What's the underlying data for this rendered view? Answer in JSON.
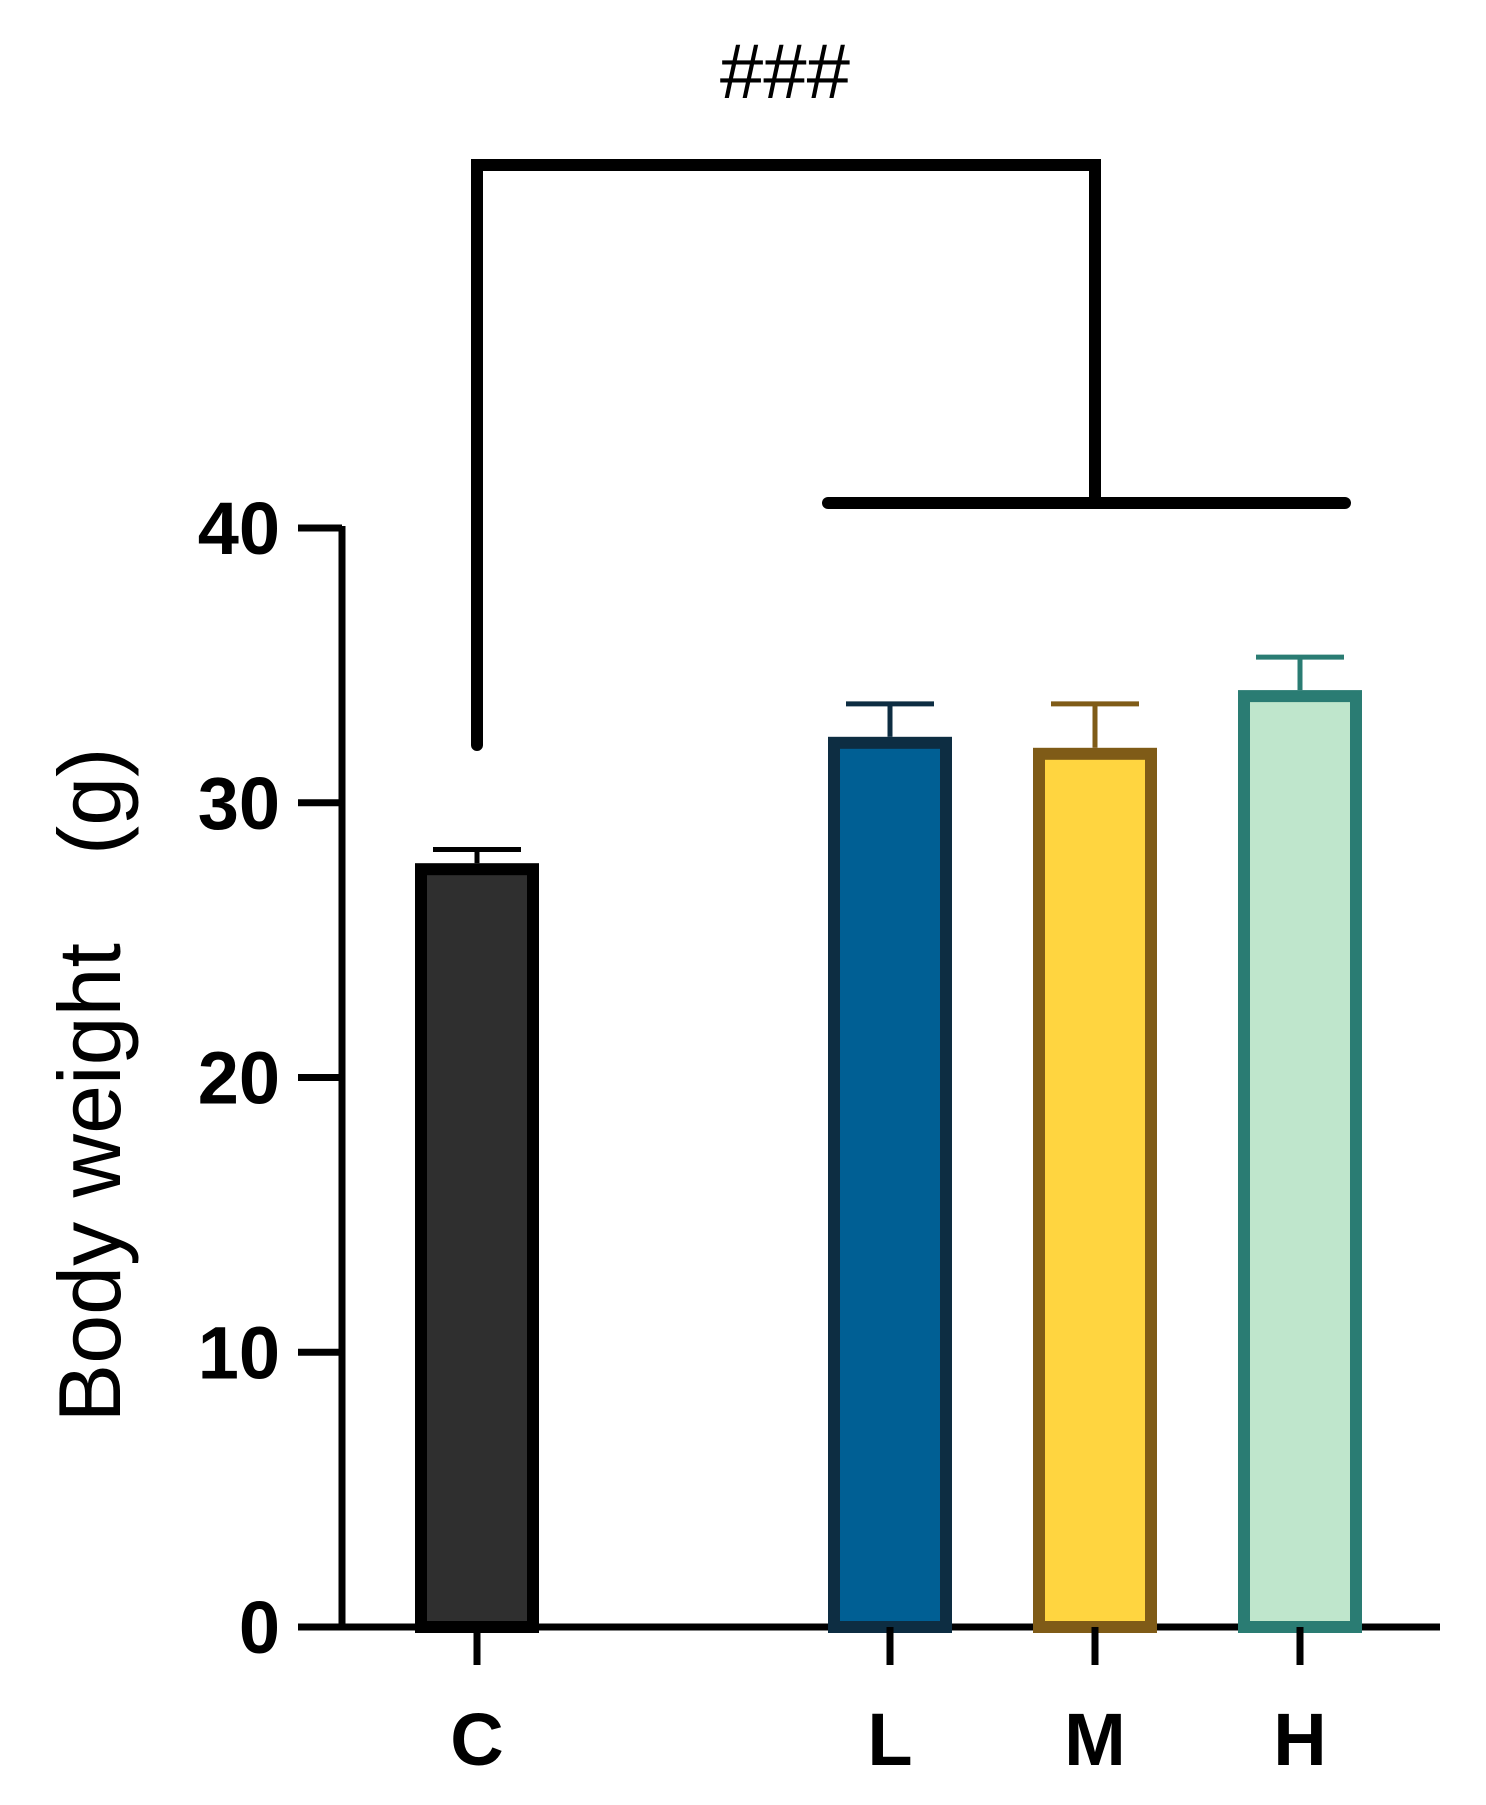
{
  "chart_data": {
    "type": "bar",
    "title": "",
    "xlabel": "",
    "ylabel": "Body weight　(g)",
    "ylim": [
      0,
      40
    ],
    "yticks": [
      0,
      10,
      20,
      30,
      40
    ],
    "grid": false,
    "categories": [
      "C",
      "L",
      "M",
      "H"
    ],
    "values": [
      27.8,
      32.4,
      32.0,
      34.1
    ],
    "errors": [
      0.5,
      1.2,
      1.6,
      1.2
    ],
    "colors": {
      "fill": [
        "#2f2f2f",
        "#005f94",
        "#ffd540",
        "#bfe6cc"
      ],
      "stroke": [
        "#000000",
        "#0d2d42",
        "#7f5b17",
        "#2a7c73"
      ]
    },
    "significance": {
      "label": "###",
      "from": "C",
      "to": [
        "L",
        "M",
        "H"
      ]
    }
  }
}
